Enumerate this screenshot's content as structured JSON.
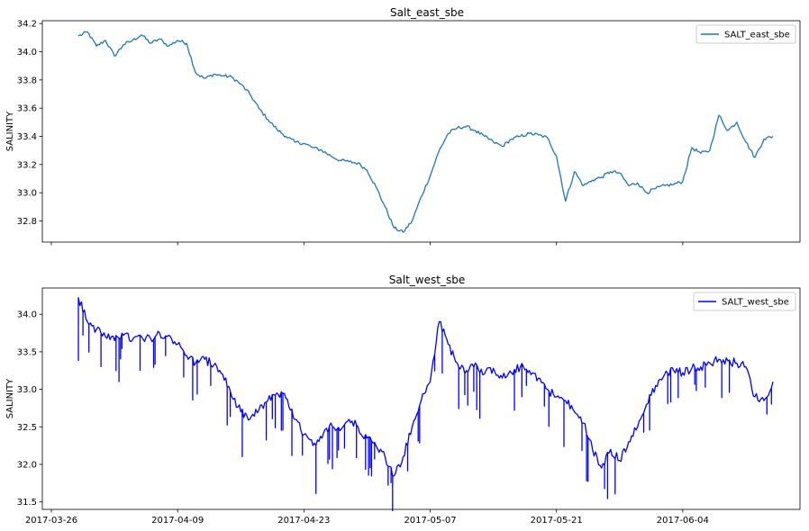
{
  "chart_data": [
    {
      "type": "line",
      "title": "Salt_east_sbe",
      "ylabel": "SALINITY",
      "xlabel": "",
      "ylim": [
        32.65,
        34.22
      ],
      "yticks": [
        32.8,
        33.0,
        33.2,
        33.4,
        33.6,
        33.8,
        34.0,
        34.2
      ],
      "ytick_labels": [
        "32.8",
        "33.0",
        "33.2",
        "33.4",
        "33.6",
        "33.8",
        "34.0",
        "34.2"
      ],
      "xlim": [
        "2017-03-25",
        "2017-06-17"
      ],
      "xticks": [
        "2017-03-26",
        "2017-04-09",
        "2017-04-23",
        "2017-05-07",
        "2017-05-21",
        "2017-06-04"
      ],
      "xtick_labels_visible": false,
      "legend": "top-right",
      "series": [
        {
          "name": "SALT_east_sbe",
          "color": "#1f77b4",
          "points": [
            [
              "2017-03-29",
              34.11
            ],
            [
              "2017-03-30",
              34.14
            ],
            [
              "2017-03-31",
              34.04
            ],
            [
              "2017-04-01",
              34.08
            ],
            [
              "2017-04-02",
              33.97
            ],
            [
              "2017-04-03",
              34.05
            ],
            [
              "2017-04-04",
              34.08
            ],
            [
              "2017-04-05",
              34.12
            ],
            [
              "2017-04-06",
              34.06
            ],
            [
              "2017-04-07",
              34.09
            ],
            [
              "2017-04-08",
              34.04
            ],
            [
              "2017-04-09",
              34.08
            ],
            [
              "2017-04-10",
              34.06
            ],
            [
              "2017-04-11",
              33.85
            ],
            [
              "2017-04-12",
              33.81
            ],
            [
              "2017-04-13",
              33.84
            ],
            [
              "2017-04-14",
              33.83
            ],
            [
              "2017-04-15",
              33.82
            ],
            [
              "2017-04-16",
              33.77
            ],
            [
              "2017-04-17",
              33.7
            ],
            [
              "2017-04-18",
              33.6
            ],
            [
              "2017-04-19",
              33.52
            ],
            [
              "2017-04-20",
              33.45
            ],
            [
              "2017-04-21",
              33.4
            ],
            [
              "2017-04-22",
              33.36
            ],
            [
              "2017-04-23",
              33.35
            ],
            [
              "2017-04-24",
              33.32
            ],
            [
              "2017-04-25",
              33.3
            ],
            [
              "2017-04-26",
              33.26
            ],
            [
              "2017-04-27",
              33.23
            ],
            [
              "2017-04-28",
              33.22
            ],
            [
              "2017-04-29",
              33.21
            ],
            [
              "2017-04-30",
              33.16
            ],
            [
              "2017-05-01",
              33.04
            ],
            [
              "2017-05-02",
              32.9
            ],
            [
              "2017-05-03",
              32.75
            ],
            [
              "2017-05-04",
              32.72
            ],
            [
              "2017-05-05",
              32.8
            ],
            [
              "2017-05-06",
              32.97
            ],
            [
              "2017-05-07",
              33.12
            ],
            [
              "2017-05-08",
              33.3
            ],
            [
              "2017-05-09",
              33.42
            ],
            [
              "2017-05-10",
              33.46
            ],
            [
              "2017-05-11",
              33.47
            ],
            [
              "2017-05-12",
              33.44
            ],
            [
              "2017-05-13",
              33.4
            ],
            [
              "2017-05-14",
              33.36
            ],
            [
              "2017-05-15",
              33.33
            ],
            [
              "2017-05-16",
              33.38
            ],
            [
              "2017-05-17",
              33.4
            ],
            [
              "2017-05-18",
              33.42
            ],
            [
              "2017-05-19",
              33.41
            ],
            [
              "2017-05-20",
              33.39
            ],
            [
              "2017-05-21",
              33.26
            ],
            [
              "2017-05-22",
              32.94
            ],
            [
              "2017-05-23",
              33.15
            ],
            [
              "2017-05-24",
              33.05
            ],
            [
              "2017-05-25",
              33.09
            ],
            [
              "2017-05-26",
              33.11
            ],
            [
              "2017-05-27",
              33.15
            ],
            [
              "2017-05-28",
              33.14
            ],
            [
              "2017-05-29",
              33.05
            ],
            [
              "2017-05-30",
              33.07
            ],
            [
              "2017-05-31",
              33.0
            ],
            [
              "2017-06-01",
              33.03
            ],
            [
              "2017-06-02",
              33.05
            ],
            [
              "2017-06-03",
              33.06
            ],
            [
              "2017-06-04",
              33.08
            ],
            [
              "2017-06-05",
              33.32
            ],
            [
              "2017-06-06",
              33.28
            ],
            [
              "2017-06-07",
              33.3
            ],
            [
              "2017-06-08",
              33.55
            ],
            [
              "2017-06-09",
              33.44
            ],
            [
              "2017-06-10",
              33.5
            ],
            [
              "2017-06-11",
              33.36
            ],
            [
              "2017-06-12",
              33.25
            ],
            [
              "2017-06-13",
              33.38
            ],
            [
              "2017-06-14",
              33.4
            ]
          ]
        }
      ]
    },
    {
      "type": "line",
      "title": "Salt_west_sbe",
      "ylabel": "SALINITY",
      "xlabel": "",
      "ylim": [
        31.4,
        34.35
      ],
      "yticks": [
        31.5,
        32.0,
        32.5,
        33.0,
        33.5,
        34.0
      ],
      "ytick_labels": [
        "31.5",
        "32.0",
        "32.5",
        "33.0",
        "33.5",
        "34.0"
      ],
      "xlim": [
        "2017-03-25",
        "2017-06-17"
      ],
      "xticks": [
        "2017-03-26",
        "2017-04-09",
        "2017-04-23",
        "2017-05-07",
        "2017-05-21",
        "2017-06-04"
      ],
      "xtick_labels": [
        "2017-03-26",
        "2017-04-09",
        "2017-04-23",
        "2017-05-07",
        "2017-05-21",
        "2017-06-04"
      ],
      "legend": "top-right",
      "series": [
        {
          "name": "SALT_west_sbe",
          "color": "#0000ff",
          "points": [
            [
              "2017-03-29",
              33.4
            ],
            [
              "2017-03-29",
              34.22
            ],
            [
              "2017-03-30",
              33.9
            ],
            [
              "2017-03-31",
              33.8
            ],
            [
              "2017-04-01",
              33.7
            ],
            [
              "2017-04-02",
              33.65
            ],
            [
              "2017-04-03",
              33.72
            ],
            [
              "2017-04-04",
              33.66
            ],
            [
              "2017-04-05",
              33.7
            ],
            [
              "2017-04-06",
              33.68
            ],
            [
              "2017-04-07",
              33.75
            ],
            [
              "2017-04-08",
              33.72
            ],
            [
              "2017-04-09",
              33.6
            ],
            [
              "2017-04-10",
              33.45
            ],
            [
              "2017-04-11",
              33.35
            ],
            [
              "2017-04-12",
              33.4
            ],
            [
              "2017-04-13",
              33.32
            ],
            [
              "2017-04-14",
              33.2
            ],
            [
              "2017-04-15",
              32.9
            ],
            [
              "2017-04-16",
              32.7
            ],
            [
              "2017-04-17",
              32.6
            ],
            [
              "2017-04-18",
              32.72
            ],
            [
              "2017-04-19",
              32.85
            ],
            [
              "2017-04-20",
              32.95
            ],
            [
              "2017-04-21",
              32.88
            ],
            [
              "2017-04-22",
              32.6
            ],
            [
              "2017-04-23",
              32.4
            ],
            [
              "2017-04-24",
              32.25
            ],
            [
              "2017-04-25",
              32.35
            ],
            [
              "2017-04-26",
              32.55
            ],
            [
              "2017-04-27",
              32.45
            ],
            [
              "2017-04-28",
              32.6
            ],
            [
              "2017-04-29",
              32.5
            ],
            [
              "2017-04-30",
              32.35
            ],
            [
              "2017-05-01",
              32.25
            ],
            [
              "2017-05-02",
              32.1
            ],
            [
              "2017-05-03",
              31.85
            ],
            [
              "2017-05-04",
              32.1
            ],
            [
              "2017-05-05",
              32.5
            ],
            [
              "2017-05-06",
              32.85
            ],
            [
              "2017-05-07",
              33.1
            ],
            [
              "2017-05-08",
              33.9
            ],
            [
              "2017-05-09",
              33.6
            ],
            [
              "2017-05-10",
              33.35
            ],
            [
              "2017-05-11",
              33.25
            ],
            [
              "2017-05-12",
              33.35
            ],
            [
              "2017-05-13",
              33.2
            ],
            [
              "2017-05-14",
              33.28
            ],
            [
              "2017-05-15",
              33.15
            ],
            [
              "2017-05-16",
              33.22
            ],
            [
              "2017-05-17",
              33.3
            ],
            [
              "2017-05-18",
              33.25
            ],
            [
              "2017-05-19",
              33.15
            ],
            [
              "2017-05-20",
              33.0
            ],
            [
              "2017-05-21",
              32.9
            ],
            [
              "2017-05-22",
              32.85
            ],
            [
              "2017-05-23",
              32.7
            ],
            [
              "2017-05-24",
              32.55
            ],
            [
              "2017-05-25",
              32.2
            ],
            [
              "2017-05-26",
              31.95
            ],
            [
              "2017-05-27",
              32.2
            ],
            [
              "2017-05-28",
              32.05
            ],
            [
              "2017-05-29",
              32.3
            ],
            [
              "2017-05-30",
              32.5
            ],
            [
              "2017-05-31",
              32.8
            ],
            [
              "2017-06-01",
              33.05
            ],
            [
              "2017-06-02",
              33.2
            ],
            [
              "2017-06-03",
              33.25
            ],
            [
              "2017-06-04",
              33.22
            ],
            [
              "2017-06-05",
              33.28
            ],
            [
              "2017-06-06",
              33.3
            ],
            [
              "2017-06-07",
              33.35
            ],
            [
              "2017-06-08",
              33.4
            ],
            [
              "2017-06-09",
              33.38
            ],
            [
              "2017-06-10",
              33.35
            ],
            [
              "2017-06-11",
              33.3
            ],
            [
              "2017-06-12",
              32.9
            ],
            [
              "2017-06-13",
              32.85
            ],
            [
              "2017-06-14",
              33.1
            ]
          ]
        }
      ]
    }
  ]
}
